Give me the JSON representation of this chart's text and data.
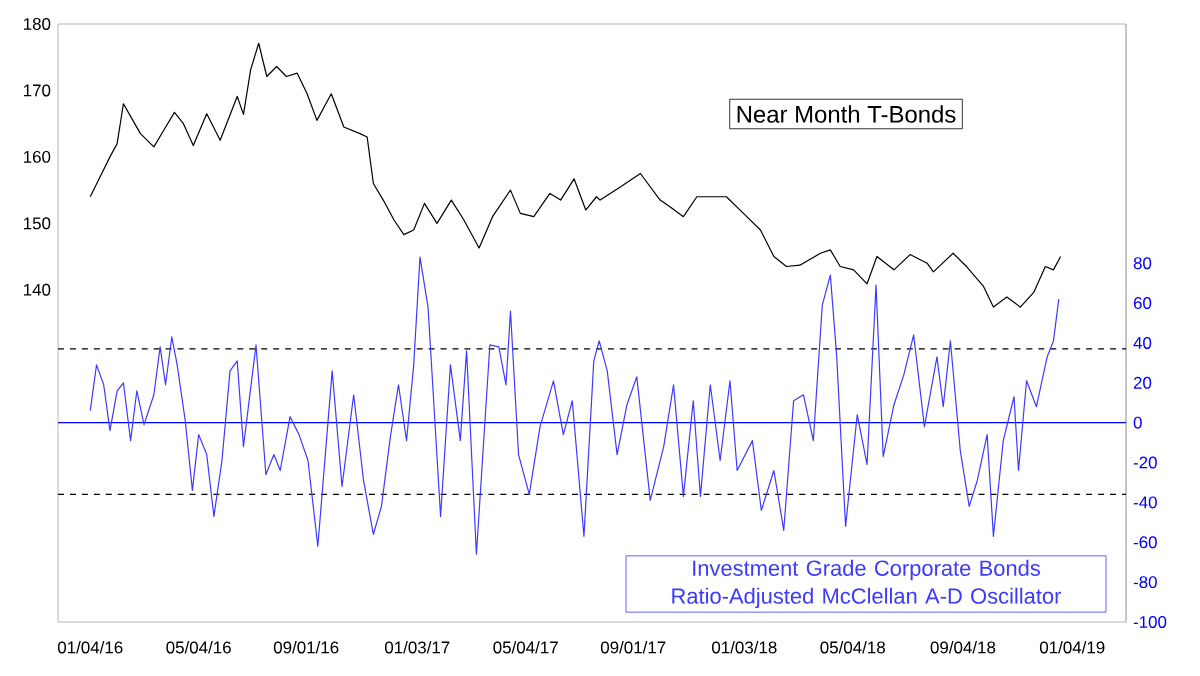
{
  "chart_data": {
    "type": "line",
    "xlim": [
      "2015-11-29",
      "2019-03-05"
    ],
    "xticks": [
      {
        "value": "2016-01-04",
        "label": "01/04/16"
      },
      {
        "value": "2016-05-04",
        "label": "05/04/16"
      },
      {
        "value": "2016-09-01",
        "label": "09/01/16"
      },
      {
        "value": "2017-01-03",
        "label": "01/03/17"
      },
      {
        "value": "2017-05-04",
        "label": "05/04/17"
      },
      {
        "value": "2017-09-01",
        "label": "09/01/17"
      },
      {
        "value": "2018-01-03",
        "label": "01/03/18"
      },
      {
        "value": "2018-05-04",
        "label": "05/04/18"
      },
      {
        "value": "2018-09-04",
        "label": "09/04/18"
      },
      {
        "value": "2019-01-04",
        "label": "01/04/19"
      }
    ],
    "ylim": [
      90,
      180
    ],
    "yticks": [
      140,
      150,
      160,
      170,
      180
    ],
    "y2lim": [
      -100,
      200
    ],
    "y2ticks": [
      -100,
      -80,
      -60,
      -40,
      -20,
      0,
      20,
      40,
      60,
      80
    ],
    "ref_lines": [
      {
        "axis": "y2",
        "value": 0,
        "color": "#0000ff",
        "line_style": "solid"
      },
      {
        "axis": "y2",
        "value": 37,
        "color": "#000000",
        "line_style": "dashed"
      },
      {
        "axis": "y2",
        "value": -36,
        "color": "#000000",
        "line_style": "dashed"
      }
    ],
    "series": [
      {
        "name": "Near Month T-Bonds",
        "color": "#000000",
        "axis": "y",
        "x": [
          "2016-01-04",
          "2016-01-15",
          "2016-01-26",
          "2016-02-03",
          "2016-02-10",
          "2016-02-18",
          "2016-02-29",
          "2016-03-15",
          "2016-03-26",
          "2016-04-07",
          "2016-04-17",
          "2016-04-28",
          "2016-05-13",
          "2016-05-28",
          "2016-06-16",
          "2016-06-23",
          "2016-07-01",
          "2016-07-10",
          "2016-07-19",
          "2016-07-30",
          "2016-08-10",
          "2016-08-22",
          "2016-09-02",
          "2016-09-13",
          "2016-09-29",
          "2016-10-13",
          "2016-10-31",
          "2016-11-08",
          "2016-11-15",
          "2016-11-26",
          "2016-12-08",
          "2016-12-19",
          "2016-12-30",
          "2017-01-11",
          "2017-01-25",
          "2017-02-10",
          "2017-02-24",
          "2017-03-13",
          "2017-03-28",
          "2017-04-17",
          "2017-04-28",
          "2017-05-13",
          "2017-05-31",
          "2017-06-12",
          "2017-06-27",
          "2017-07-10",
          "2017-07-22",
          "2017-07-26",
          "2017-08-18",
          "2017-09-09",
          "2017-10-01",
          "2017-10-12",
          "2017-10-27",
          "2017-11-11",
          "2017-12-14",
          "2018-01-02",
          "2018-01-21",
          "2018-02-05",
          "2018-02-19",
          "2018-03-06",
          "2018-03-29",
          "2018-04-09",
          "2018-04-20",
          "2018-05-05",
          "2018-05-20",
          "2018-05-31",
          "2018-06-19",
          "2018-07-07",
          "2018-07-26",
          "2018-08-02",
          "2018-08-24",
          "2018-09-08",
          "2018-09-27",
          "2018-10-08",
          "2018-10-23",
          "2018-11-07",
          "2018-11-22",
          "2018-12-05",
          "2018-12-14",
          "2018-12-22"
        ],
        "values": [
          154.0,
          157.0,
          160.0,
          162.0,
          168.0,
          166.1,
          163.5,
          161.5,
          164.0,
          166.7,
          165.0,
          161.7,
          166.5,
          162.5,
          169.1,
          166.4,
          173.1,
          177.1,
          172.1,
          173.6,
          172.1,
          172.6,
          169.5,
          165.5,
          169.5,
          164.5,
          163.5,
          163.0,
          156.0,
          153.5,
          150.5,
          148.3,
          149.0,
          153.0,
          150.0,
          153.5,
          150.5,
          146.3,
          151.0,
          155.0,
          151.5,
          151.0,
          154.5,
          153.5,
          156.7,
          152.0,
          154.0,
          153.5,
          155.5,
          157.5,
          153.5,
          152.5,
          151.0,
          154.0,
          154.0,
          151.5,
          149.0,
          145.0,
          143.5,
          143.7,
          145.5,
          146.0,
          143.5,
          143.0,
          140.9,
          145.0,
          143.0,
          145.3,
          144.0,
          142.7,
          145.5,
          143.5,
          140.5,
          137.4,
          138.9,
          137.4,
          139.6,
          143.5,
          143.0,
          145.0
        ]
      },
      {
        "name": "Investment Grade Corporate Bonds Ratio-Adjusted McClellan A-D Oscillator",
        "color": "#3b3bff",
        "axis": "y2",
        "x": [
          "2016-01-04",
          "2016-01-11",
          "2016-01-19",
          "2016-01-26",
          "2016-02-03",
          "2016-02-10",
          "2016-02-18",
          "2016-02-25",
          "2016-03-04",
          "2016-03-15",
          "2016-03-22",
          "2016-03-28",
          "2016-04-04",
          "2016-04-10",
          "2016-04-19",
          "2016-04-27",
          "2016-05-04",
          "2016-05-13",
          "2016-05-21",
          "2016-05-30",
          "2016-06-08",
          "2016-06-16",
          "2016-06-23",
          "2016-07-07",
          "2016-07-18",
          "2016-07-27",
          "2016-08-03",
          "2016-08-14",
          "2016-08-24",
          "2016-09-03",
          "2016-09-14",
          "2016-09-30",
          "2016-10-11",
          "2016-10-24",
          "2016-11-04",
          "2016-11-15",
          "2016-11-24",
          "2016-12-04",
          "2016-12-13",
          "2016-12-22",
          "2016-12-30",
          "2017-01-06",
          "2017-01-15",
          "2017-01-29",
          "2017-02-09",
          "2017-02-20",
          "2017-02-27",
          "2017-03-10",
          "2017-03-25",
          "2017-04-04",
          "2017-04-12",
          "2017-04-17",
          "2017-04-26",
          "2017-05-08",
          "2017-05-20",
          "2017-06-04",
          "2017-06-15",
          "2017-06-25",
          "2017-07-08",
          "2017-07-19",
          "2017-07-25",
          "2017-08-03",
          "2017-08-14",
          "2017-08-25",
          "2017-09-05",
          "2017-09-20",
          "2017-10-05",
          "2017-10-16",
          "2017-10-27",
          "2017-11-07",
          "2017-11-15",
          "2017-11-26",
          "2017-12-07",
          "2017-12-18",
          "2017-12-26",
          "2018-01-12",
          "2018-01-22",
          "2018-02-05",
          "2018-02-16",
          "2018-02-27",
          "2018-03-10",
          "2018-03-21",
          "2018-03-31",
          "2018-04-09",
          "2018-04-16",
          "2018-04-26",
          "2018-05-09",
          "2018-05-20",
          "2018-05-30",
          "2018-06-07",
          "2018-06-19",
          "2018-06-30",
          "2018-07-11",
          "2018-07-23",
          "2018-08-06",
          "2018-08-13",
          "2018-08-21",
          "2018-09-01",
          "2018-09-11",
          "2018-09-20",
          "2018-10-01",
          "2018-10-08",
          "2018-10-19",
          "2018-10-31",
          "2018-11-05",
          "2018-11-14",
          "2018-11-25",
          "2018-12-07",
          "2018-12-14",
          "2018-12-20"
        ],
        "values": [
          6,
          29,
          19,
          -4,
          16,
          20,
          -9,
          16,
          -1,
          14,
          38,
          19,
          43,
          29,
          1,
          -34,
          -6,
          -16,
          -47,
          -19,
          26,
          31,
          -12,
          39,
          -26,
          -16,
          -24,
          3,
          -6,
          -19,
          -62,
          26,
          -32,
          14,
          -29,
          -56,
          -42,
          -7,
          19,
          -9,
          29,
          83,
          58,
          -47,
          29,
          -9,
          36,
          -66,
          39,
          38,
          19,
          56,
          -16,
          -36,
          -2,
          21,
          -6,
          11,
          -57,
          31,
          41,
          26,
          -16,
          9,
          23,
          -39,
          -12,
          19,
          -37,
          11,
          -37,
          19,
          -19,
          21,
          -24,
          -9,
          -44,
          -24,
          -54,
          11,
          14,
          -9,
          59,
          74,
          34,
          -52,
          4,
          -21,
          69,
          -17,
          9,
          24,
          44,
          -2,
          33,
          8,
          41,
          -14,
          -42,
          -29,
          -6,
          -57,
          -9,
          13,
          -24,
          21,
          8,
          33,
          41,
          62
        ]
      }
    ]
  }
}
